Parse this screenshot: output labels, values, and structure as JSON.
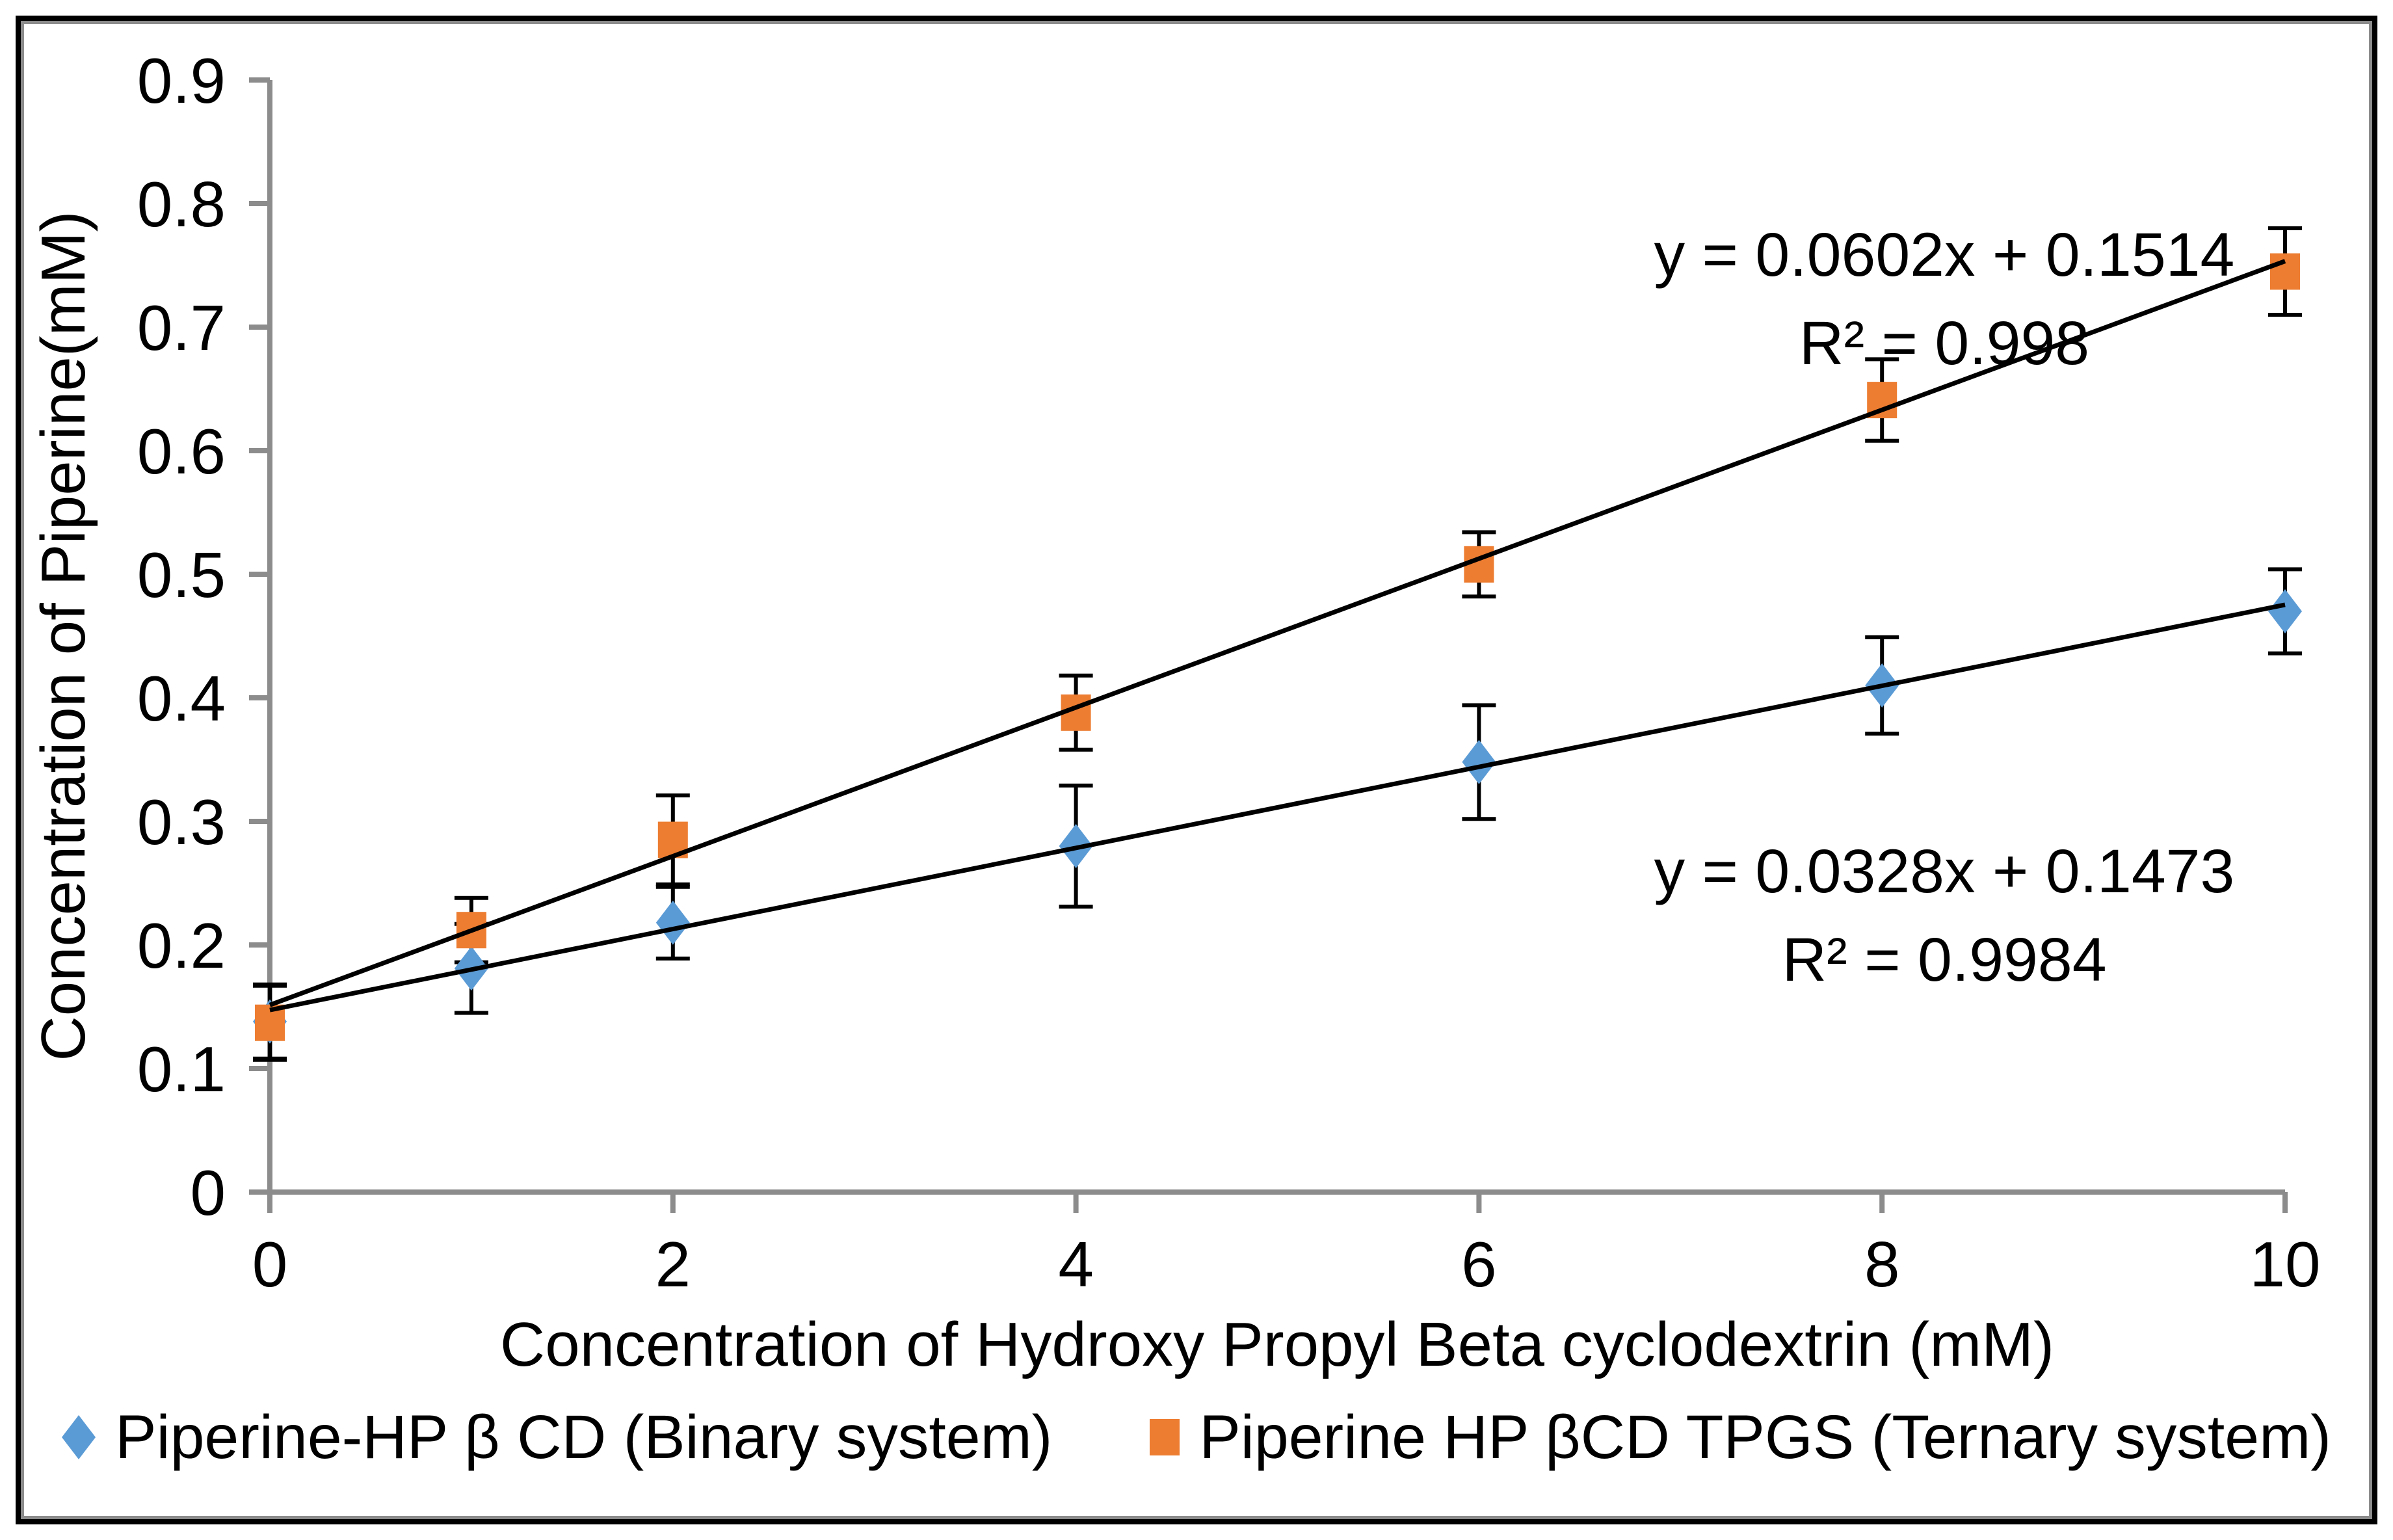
{
  "chart_data": {
    "type": "scatter",
    "title": "",
    "xlabel": "Concentration of Hydroxy Propyl Beta cyclodextrin (mM)",
    "ylabel": "Concentration of Piperine(mM)",
    "xlim": [
      0,
      10
    ],
    "ylim": [
      0,
      0.9
    ],
    "x_ticks": [
      0,
      2,
      4,
      6,
      8,
      10
    ],
    "y_ticks": [
      0,
      0.1,
      0.2,
      0.3,
      0.4,
      0.5,
      0.6,
      0.7,
      0.8,
      0.9
    ],
    "grid": false,
    "legend_position": "bottom",
    "axis_color": "#8C8C8C",
    "text_color": "#000000",
    "trendline_color": "#000000",
    "error_bar_color": "#000000",
    "series": [
      {
        "name": "Piperine-HP β CD (Binary system)",
        "marker": "diamond",
        "color": "#5B9BD5",
        "x": [
          0,
          1,
          2,
          4,
          6,
          8,
          10
        ],
        "y": [
          0.138,
          0.181,
          0.218,
          0.28,
          0.348,
          0.41,
          0.47
        ],
        "yerr": [
          0.03,
          0.036,
          0.029,
          0.049,
          0.046,
          0.039,
          0.034
        ],
        "trendline": {
          "slope": 0.0328,
          "intercept": 0.1473
        },
        "equation": "y = 0.0328x + 0.1473",
        "r_squared": "R² = 0.9984"
      },
      {
        "name": "Piperine HP βCD TPGS (Ternary system)",
        "marker": "square",
        "color": "#ED7D31",
        "x": [
          0,
          1,
          2,
          4,
          6,
          8,
          10
        ],
        "y": [
          0.137,
          0.212,
          0.285,
          0.388,
          0.508,
          0.641,
          0.745
        ],
        "yerr": [
          0.03,
          0.026,
          0.036,
          0.03,
          0.026,
          0.033,
          0.035
        ],
        "trendline": {
          "slope": 0.0602,
          "intercept": 0.1514
        },
        "equation": "y = 0.0602x + 0.1514",
        "r_squared": "R² = 0.998"
      }
    ]
  }
}
